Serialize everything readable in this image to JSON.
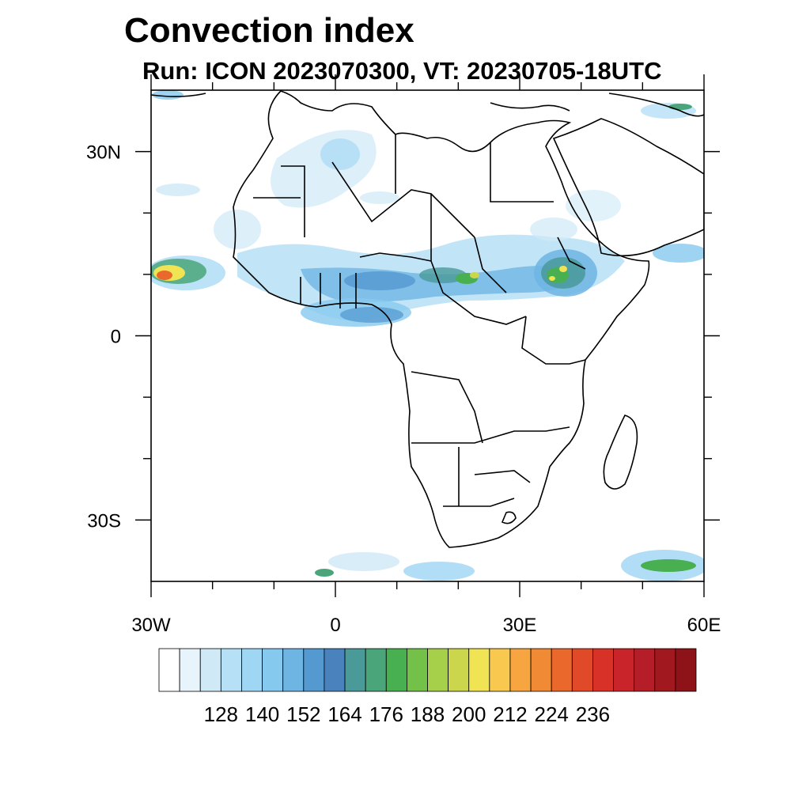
{
  "title": "Convection index",
  "subtitle": "Run: ICON 2023070300,  VT: 20230705-18UTC",
  "map": {
    "extent": {
      "lon_min": -30,
      "lon_max": 60,
      "lat_min": -40,
      "lat_max": 40
    },
    "lat_labels": [
      {
        "lat": 30,
        "text": "30N"
      },
      {
        "lat": 0,
        "text": "0"
      },
      {
        "lat": -30,
        "text": "30S"
      }
    ],
    "lon_labels": [
      {
        "lon": -30,
        "text": "30W"
      },
      {
        "lon": 0,
        "text": "0"
      },
      {
        "lon": 30,
        "text": "30E"
      },
      {
        "lon": 60,
        "text": "60E"
      }
    ],
    "lat_minor_ticks": [
      -30,
      -20,
      -10,
      0,
      10,
      20,
      30
    ],
    "lon_minor_ticks": [
      -30,
      -20,
      -10,
      0,
      10,
      20,
      30,
      40,
      50,
      60
    ],
    "colors": {
      "land_border": "#000000",
      "frame": "#000000"
    }
  },
  "colorbar": {
    "colors": [
      "#ffffff",
      "#e8f4fb",
      "#cfe9f7",
      "#b6e0f6",
      "#9ed6f4",
      "#86c9ef",
      "#6fb5e4",
      "#5499d0",
      "#4a82bd",
      "#4a9a9a",
      "#4aa67a",
      "#48b051",
      "#74c14a",
      "#a6cf4a",
      "#cbd64d",
      "#f0e454",
      "#f9c84e",
      "#f6a541",
      "#f08a34",
      "#ea682b",
      "#e04a29",
      "#d83228",
      "#c9242a",
      "#b51d28",
      "#a2181f",
      "#8e1318"
    ],
    "labels": [
      "128",
      "140",
      "152",
      "164",
      "176",
      "188",
      "200",
      "212",
      "224",
      "236"
    ]
  }
}
